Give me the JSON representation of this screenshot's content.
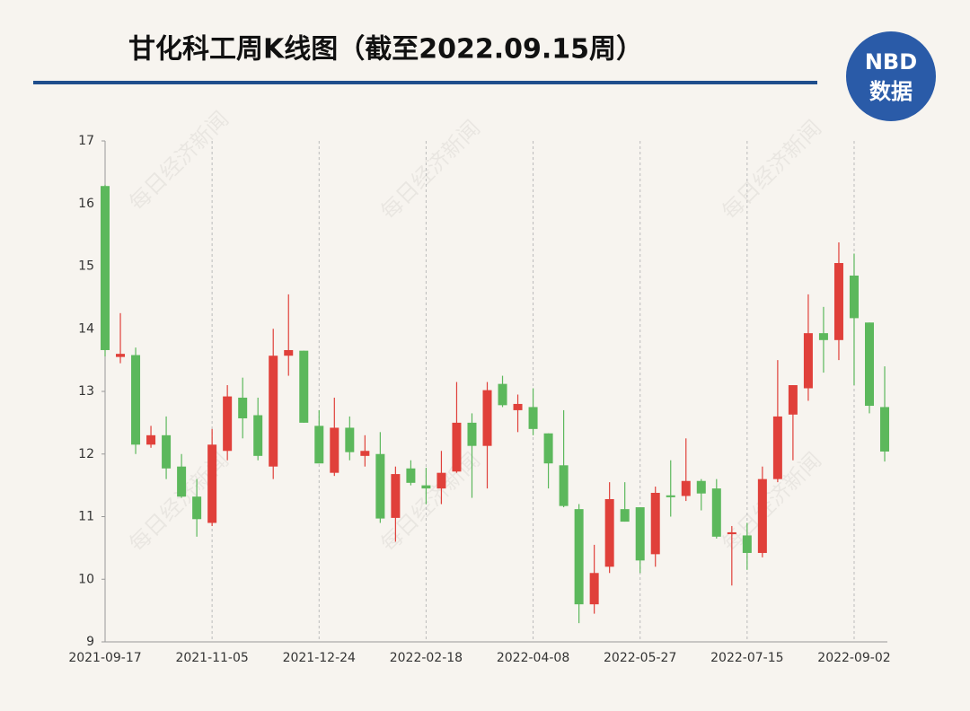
{
  "chart_data": {
    "type": "candlestick",
    "title": "甘化科工周K线图（截至2022.09.15周）",
    "logo": {
      "top": "NBD",
      "bottom": "数据"
    },
    "watermark": "每日经济新闻",
    "up_color": "#e0403a",
    "down_color": "#5cb85c",
    "categories": [
      "2021-09-17",
      null,
      null,
      null,
      null,
      null,
      null,
      "2021-11-05",
      null,
      null,
      null,
      null,
      null,
      null,
      "2021-12-24",
      null,
      null,
      null,
      null,
      null,
      null,
      "2022-02-18",
      null,
      null,
      null,
      null,
      null,
      null,
      "2022-04-08",
      null,
      null,
      null,
      null,
      null,
      null,
      "2022-05-27",
      null,
      null,
      null,
      null,
      null,
      null,
      "2022-07-15",
      null,
      null,
      null,
      null,
      null,
      null,
      "2022-09-02",
      null,
      null
    ],
    "open": [
      16.28,
      13.55,
      13.58,
      12.15,
      12.3,
      11.8,
      11.32,
      10.9,
      12.05,
      12.9,
      12.62,
      11.8,
      13.57,
      13.65,
      12.45,
      11.7,
      12.42,
      11.97,
      12.0,
      10.98,
      11.77,
      11.5,
      11.45,
      11.72,
      12.5,
      12.13,
      13.12,
      12.7,
      12.75,
      12.33,
      11.82,
      11.12,
      9.6,
      10.2,
      11.12,
      11.15,
      10.4,
      11.34,
      11.33,
      11.57,
      11.45,
      10.72,
      10.7,
      10.42,
      11.6,
      12.63,
      13.05,
      13.93,
      13.82,
      14.85,
      14.1,
      12.75
    ],
    "high": [
      16.3,
      14.25,
      13.7,
      12.45,
      12.6,
      12.0,
      11.6,
      12.4,
      13.1,
      13.22,
      12.9,
      14.0,
      14.55,
      13.65,
      12.7,
      12.9,
      12.6,
      12.3,
      12.35,
      11.8,
      11.9,
      11.78,
      12.05,
      13.15,
      12.65,
      13.15,
      13.25,
      12.95,
      13.05,
      12.33,
      12.7,
      11.2,
      10.55,
      11.55,
      11.55,
      11.15,
      11.48,
      11.9,
      12.25,
      11.6,
      11.6,
      10.85,
      10.9,
      11.8,
      13.5,
      13.1,
      14.55,
      14.35,
      15.38,
      15.2,
      14.1,
      13.4
    ],
    "low": [
      13.56,
      13.45,
      12.0,
      12.1,
      11.6,
      11.3,
      10.68,
      10.85,
      11.9,
      12.25,
      11.9,
      11.6,
      13.25,
      12.5,
      11.85,
      11.65,
      11.9,
      11.8,
      10.9,
      10.6,
      11.5,
      11.2,
      11.2,
      11.7,
      11.3,
      11.45,
      12.75,
      12.35,
      12.3,
      11.45,
      11.15,
      9.3,
      9.45,
      10.1,
      10.92,
      10.1,
      10.2,
      11.0,
      11.25,
      11.1,
      10.65,
      9.9,
      10.15,
      10.35,
      11.55,
      11.9,
      12.85,
      13.3,
      13.5,
      13.1,
      12.65,
      11.88
    ],
    "close": [
      13.66,
      13.6,
      12.15,
      12.3,
      11.77,
      11.32,
      10.96,
      12.15,
      12.92,
      12.57,
      11.97,
      13.57,
      13.66,
      12.5,
      11.85,
      12.42,
      12.03,
      12.05,
      10.97,
      11.68,
      11.54,
      11.45,
      11.7,
      12.5,
      12.13,
      13.02,
      12.78,
      12.8,
      12.4,
      11.85,
      11.17,
      9.6,
      10.1,
      11.28,
      10.92,
      10.3,
      11.38,
      11.31,
      11.57,
      11.37,
      10.68,
      10.75,
      10.42,
      11.6,
      12.6,
      13.1,
      13.93,
      13.82,
      15.05,
      14.17,
      12.77,
      12.04
    ],
    "ylim": [
      9,
      17
    ],
    "yticks": [
      9,
      10,
      11,
      12,
      13,
      14,
      15,
      16,
      17
    ],
    "grid": true
  }
}
